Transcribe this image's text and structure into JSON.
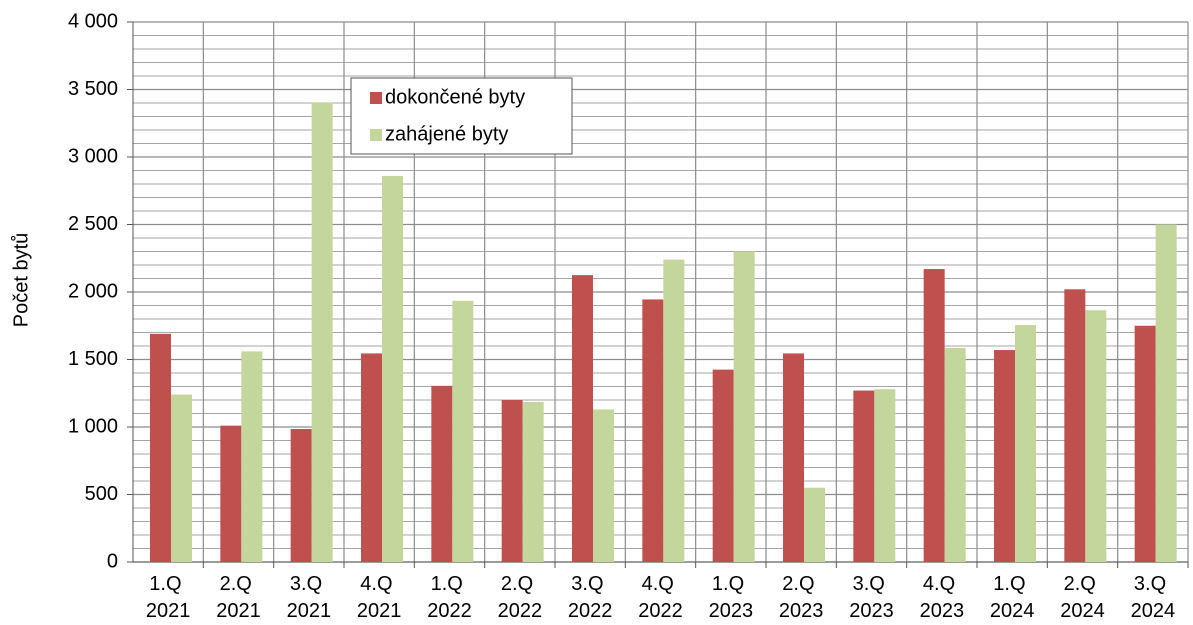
{
  "chart_data": {
    "type": "bar",
    "y_label": "Počet bytů",
    "categories": [
      "1.Q 2021",
      "2.Q 2021",
      "3.Q 2021",
      "4.Q 2021",
      "1.Q 2022",
      "2.Q 2022",
      "3.Q 2022",
      "4.Q 2022",
      "1.Q 2023",
      "2.Q 2023",
      "3.Q 2023",
      "4.Q 2023",
      "1.Q 2024",
      "2.Q 2024",
      "3.Q 2024"
    ],
    "series": [
      {
        "name": "dokončené byty",
        "color": "#c0504d",
        "values": [
          1690,
          1010,
          985,
          1545,
          1305,
          1200,
          2125,
          1945,
          1425,
          1545,
          1270,
          2170,
          1570,
          2020,
          1750
        ]
      },
      {
        "name": "zahájené byty",
        "color": "#c3d69b",
        "values": [
          1240,
          1560,
          3405,
          2860,
          1935,
          1185,
          1130,
          2240,
          2300,
          550,
          1280,
          1585,
          1755,
          1865,
          2500
        ]
      }
    ],
    "ylim": [
      0,
      4000
    ],
    "yticks": [
      0,
      500,
      {
        "value": 1000,
        "label": "1 000"
      },
      {
        "value": 1500,
        "label": "1 500"
      },
      {
        "value": 2000,
        "label": "2 000"
      },
      {
        "value": 2500,
        "label": "2 500"
      },
      {
        "value": 3000,
        "label": "3 000"
      },
      {
        "value": 3500,
        "label": "3 500"
      },
      {
        "value": 4000,
        "label": "4 000"
      }
    ],
    "minor_yticks": [
      100,
      200,
      300,
      400,
      600,
      700,
      800,
      900,
      1100,
      1200,
      1300,
      1400,
      1600,
      1700,
      1800,
      1900,
      2100,
      2200,
      2300,
      2400,
      2600,
      2700,
      2800,
      2900,
      3100,
      3200,
      3300,
      3400,
      3600,
      3700,
      3800,
      3900
    ],
    "grid": true,
    "legend": "upper left"
  }
}
